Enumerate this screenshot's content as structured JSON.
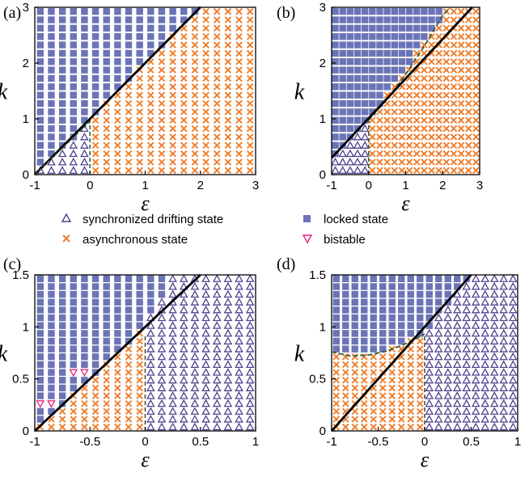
{
  "colors": {
    "locked": "#6b74b6",
    "async": "#f07d2a",
    "sync": "#50418f",
    "bistable": "#e2247a",
    "boundary": "#000000",
    "dashed": "#3b5a3a"
  },
  "legend": {
    "sync": "synchronized drifting state",
    "async": "asynchronous state",
    "locked": "locked state",
    "bistable": "bistable"
  },
  "chart_data": [
    {
      "panel": "(a)",
      "type": "scatter",
      "xlabel": "ε",
      "ylabel": "k",
      "xlim": [
        -1,
        3
      ],
      "ylim": [
        0,
        3
      ],
      "xticks": [
        "-1",
        "0",
        "1",
        "2",
        "3"
      ],
      "yticks": [
        "0",
        "1",
        "2",
        "3"
      ],
      "grid_step": [
        0.1,
        0.1
      ],
      "regions": "locked: k > 1 + eps (eps >= 0) or k > 0.7 + 0.6*(eps+1) style upper-left wedge for eps < 0; asynchronous: k < 1 + eps with eps >= 0; synchronized drifting: eps < 0 below the wedge",
      "boundary_solid": [
        [
          -1,
          0
        ],
        [
          2,
          3
        ]
      ],
      "boundary_dashed": [
        [
          0,
          0
        ],
        [
          0,
          1
        ]
      ],
      "wedge_top": [
        [
          -1,
          0.0
        ],
        [
          0,
          0.95
        ]
      ]
    },
    {
      "panel": "(b)",
      "type": "scatter",
      "xlabel": "ε",
      "ylabel": "k",
      "xlim": [
        -1,
        3
      ],
      "ylim": [
        0,
        3
      ],
      "xticks": [
        "-1",
        "0",
        "1",
        "2",
        "3"
      ],
      "yticks": [
        "0",
        "1",
        "2",
        "3"
      ],
      "boundary_solid": [
        [
          -1,
          0.3
        ],
        [
          2.8,
          3
        ]
      ],
      "boundary_dashed_curve": [
        [
          0,
          0.98
        ],
        [
          0.5,
          1.35
        ],
        [
          1,
          1.8
        ],
        [
          1.5,
          2.3
        ],
        [
          2,
          2.85
        ],
        [
          2.2,
          3
        ]
      ],
      "boundary_dashed": [
        [
          0,
          0
        ],
        [
          0,
          1
        ]
      ]
    },
    {
      "panel": "(c)",
      "type": "scatter",
      "xlabel": "ε",
      "ylabel": "k",
      "xlim": [
        -1,
        1
      ],
      "ylim": [
        0,
        1.5
      ],
      "xticks": [
        "-1",
        "-0.5",
        "0",
        "0.5",
        "1"
      ],
      "yticks": [
        "0",
        "0.5",
        "1",
        "1.5"
      ],
      "boundary_solid": [
        [
          -1,
          0
        ],
        [
          0.5,
          1.5
        ]
      ],
      "boundary_dashed": [
        [
          0,
          0
        ],
        [
          0,
          0.93
        ]
      ],
      "bistable_points": [
        [
          -0.9,
          0.25
        ],
        [
          -0.8,
          0.25
        ],
        [
          -0.7,
          0.4
        ],
        [
          -0.6,
          0.55
        ]
      ]
    },
    {
      "panel": "(d)",
      "type": "scatter",
      "xlabel": "ε",
      "ylabel": "k",
      "xlim": [
        -1,
        1
      ],
      "ylim": [
        0,
        1.5
      ],
      "xticks": [
        "-1",
        "-0.5",
        "0",
        "0.5",
        "1"
      ],
      "yticks": [
        "0",
        "0.5",
        "1",
        "1.5"
      ],
      "boundary_solid": [
        [
          -1,
          0
        ],
        [
          0.5,
          1.5
        ]
      ],
      "boundary_dashed_curve": [
        [
          -1,
          0.76
        ],
        [
          -0.8,
          0.72
        ],
        [
          -0.6,
          0.73
        ],
        [
          -0.4,
          0.77
        ],
        [
          -0.2,
          0.84
        ],
        [
          0,
          0.93
        ]
      ],
      "boundary_dashed": [
        [
          0,
          0
        ],
        [
          0,
          0.93
        ]
      ]
    }
  ]
}
